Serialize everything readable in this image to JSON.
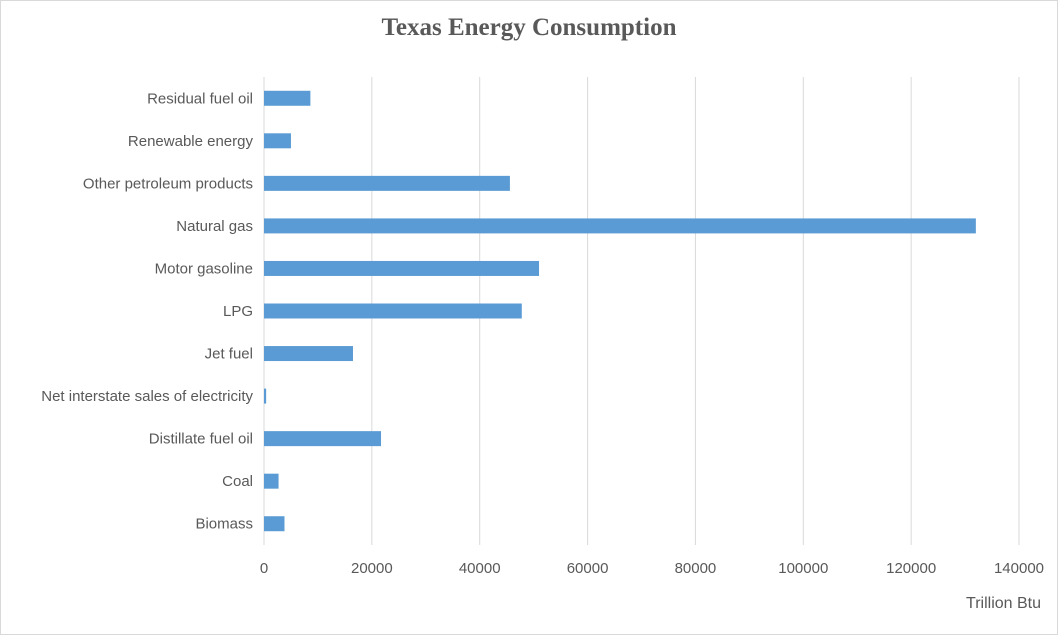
{
  "chart_data": {
    "type": "bar",
    "orientation": "horizontal",
    "title": "Texas Energy Consumption",
    "xlabel": "Trillion Btu",
    "ylabel": "",
    "categories": [
      "Biomass",
      "Coal",
      "Distillate fuel oil",
      "Net interstate sales of electricity",
      "Jet fuel",
      "LPG",
      "Motor gasoline",
      "Natural gas",
      "Other petroleum products",
      "Renewable energy",
      "Residual fuel oil"
    ],
    "values": [
      3800,
      2700,
      21700,
      400,
      16500,
      47800,
      51000,
      132000,
      45600,
      5000,
      8600
    ],
    "xlim": [
      0,
      140000
    ],
    "xticks": [
      "0",
      "20000",
      "40000",
      "60000",
      "80000",
      "100000",
      "120000",
      "140000"
    ],
    "grid": "vertical",
    "colors": {
      "bar": "#5b9bd5",
      "grid": "#d9d9d9",
      "text": "#595959"
    }
  }
}
